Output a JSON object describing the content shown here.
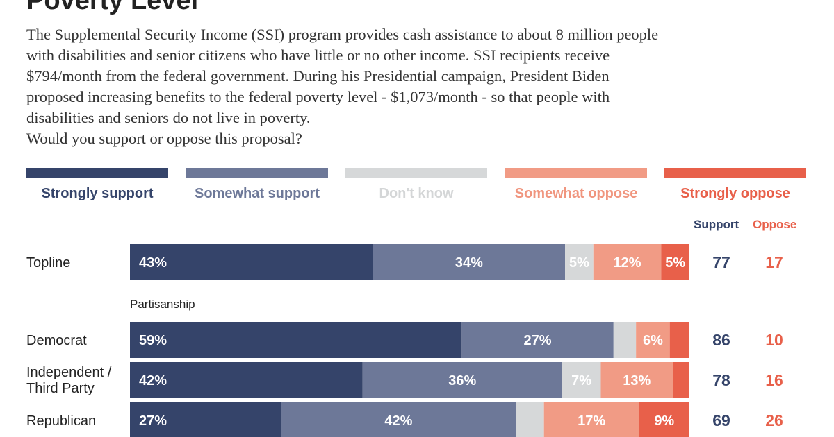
{
  "title": "Poverty Level",
  "description": [
    "The Supplemental Security Income (SSI) program provides cash assistance to about 8 million people",
    "with disabilities and senior citizens who have little or no other income. SSI recipients receive",
    "$794/month from the federal government. During his Presidential campaign, President Biden",
    "proposed increasing benefits to the federal poverty level - $1,073/month - so that people with",
    "disabilities and seniors do not live in poverty.",
    "Would you support or oppose this proposal?"
  ],
  "colors": {
    "strongly_support": "#35446a",
    "somewhat_support": "#6d7898",
    "dont_know": "#d6d8d9",
    "somewhat_oppose": "#f19b85",
    "strongly_oppose": "#e8604a"
  },
  "summary_headers": {
    "support": "Support",
    "oppose": "Oppose"
  },
  "chart_data": {
    "type": "bar",
    "orientation": "horizontal",
    "stacked": true,
    "title": "Poverty Level",
    "series_names": [
      "Strongly support",
      "Somewhat support",
      "Don't know",
      "Somewhat oppose",
      "Strongly oppose"
    ],
    "xlim": [
      0,
      100
    ],
    "rows": [
      {
        "label": "Topline",
        "group": "",
        "values": [
          43,
          34,
          5,
          12,
          5
        ],
        "labels": [
          "43%",
          "34%",
          "5%",
          "12%",
          "5%"
        ],
        "support": 77,
        "oppose": 17
      },
      {
        "label": "Democrat",
        "group": "Partisanship",
        "values": [
          59,
          27,
          4,
          6,
          3.5
        ],
        "labels": [
          "59%",
          "27%",
          "",
          "6%",
          ""
        ],
        "support": 86,
        "oppose": 10
      },
      {
        "label": "Independent / Third Party",
        "group": "Partisanship",
        "values": [
          42,
          36,
          7,
          13,
          3
        ],
        "labels": [
          "42%",
          "36%",
          "7%",
          "13%",
          ""
        ],
        "support": 78,
        "oppose": 16
      },
      {
        "label": "Republican",
        "group": "Partisanship",
        "values": [
          27,
          42,
          5,
          17,
          9
        ],
        "labels": [
          "27%",
          "42%",
          "",
          "17%",
          "9%"
        ],
        "support": 69,
        "oppose": 26
      }
    ]
  }
}
